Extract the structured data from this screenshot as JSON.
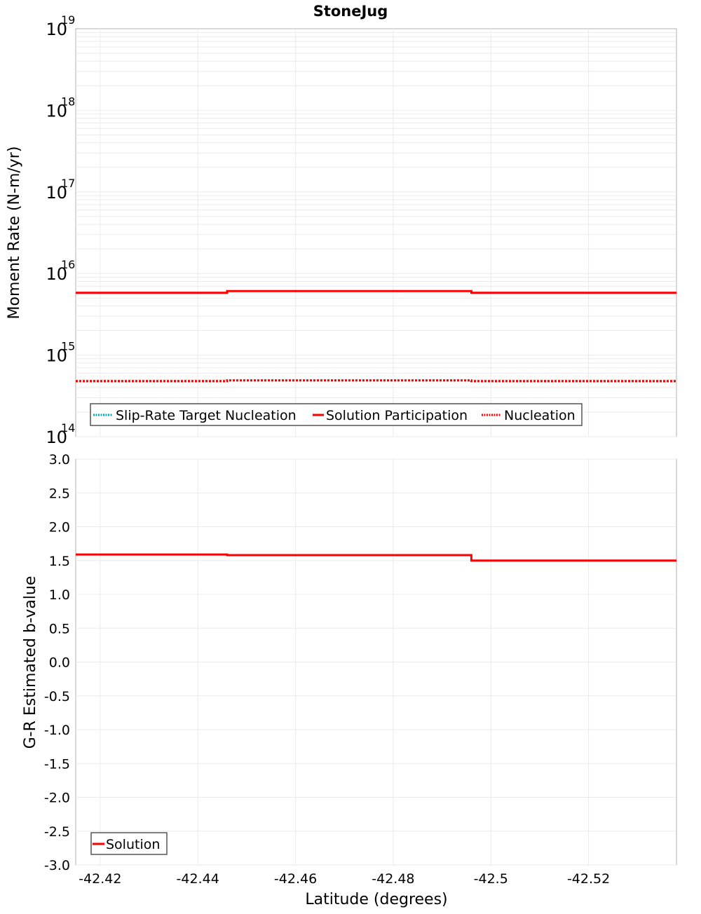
{
  "chart_data": [
    {
      "type": "line",
      "title": "StoneJug",
      "xlabel": "Latitude (degrees)",
      "ylabel": "Moment Rate (N-m/yr)",
      "yscale": "log",
      "ylim": [
        100000000000000.0,
        1e+19
      ],
      "xlim": [
        -42.415,
        -42.538
      ],
      "y_ticks": [
        {
          "base": "10",
          "exp": "19",
          "value": 1e+19
        },
        {
          "base": "10",
          "exp": "18",
          "value": 1e+18
        },
        {
          "base": "10",
          "exp": "17",
          "value": 1e+17
        },
        {
          "base": "10",
          "exp": "16",
          "value": 1e+16
        },
        {
          "base": "10",
          "exp": "15",
          "value": 1000000000000000.0
        },
        {
          "base": "10",
          "exp": "14",
          "value": 100000000000000.0
        }
      ],
      "grid": true,
      "legend_position": "lower-left",
      "series": [
        {
          "name": "Slip-Rate Target Nucleation",
          "color": "#00aabb",
          "style": "dotted",
          "x": [
            -42.415,
            -42.446,
            -42.446,
            -42.496,
            -42.496,
            -42.538
          ],
          "values": [
            480000000000000.0,
            480000000000000.0,
            490000000000000.0,
            490000000000000.0,
            480000000000000.0,
            480000000000000.0
          ]
        },
        {
          "name": "Solution Participation",
          "color": "#ff0000",
          "style": "solid",
          "x": [
            -42.415,
            -42.446,
            -42.446,
            -42.496,
            -42.496,
            -42.538
          ],
          "values": [
            5800000000000000.0,
            5800000000000000.0,
            6100000000000000.0,
            6100000000000000.0,
            5800000000000000.0,
            5800000000000000.0
          ]
        },
        {
          "name": "Nucleation",
          "color": "#ff0000",
          "style": "dotted",
          "x": [
            -42.415,
            -42.446,
            -42.446,
            -42.496,
            -42.496,
            -42.538
          ],
          "values": [
            480000000000000.0,
            480000000000000.0,
            490000000000000.0,
            490000000000000.0,
            480000000000000.0,
            480000000000000.0
          ]
        }
      ]
    },
    {
      "type": "line",
      "title": "",
      "xlabel": "Latitude (degrees)",
      "ylabel": "G-R Estimated b-value",
      "ylim": [
        -3.0,
        3.0
      ],
      "xlim": [
        -42.415,
        -42.538
      ],
      "y_ticks": [
        "3.0",
        "2.5",
        "2.0",
        "1.5",
        "1.0",
        "0.5",
        "0.0",
        "-0.5",
        "-1.0",
        "-1.5",
        "-2.0",
        "-2.5",
        "-3.0"
      ],
      "x_ticks": [
        "-42.42",
        "-42.44",
        "-42.46",
        "-42.48",
        "-42.5",
        "-42.52"
      ],
      "grid": true,
      "legend_position": "lower-left",
      "series": [
        {
          "name": "Solution",
          "color": "#ff0000",
          "style": "solid",
          "x": [
            -42.415,
            -42.446,
            -42.446,
            -42.496,
            -42.496,
            -42.538
          ],
          "values": [
            1.59,
            1.59,
            1.58,
            1.58,
            1.5,
            1.5
          ]
        }
      ]
    }
  ],
  "title": "StoneJug",
  "top": {
    "ylabel": "Moment Rate (N-m/yr)",
    "legend": [
      "Slip-Rate Target Nucleation",
      "Solution Participation",
      "Nucleation"
    ]
  },
  "bottom": {
    "ylabel": "G-R Estimated b-value",
    "xlabel": "Latitude (degrees)",
    "legend": [
      "Solution"
    ]
  }
}
